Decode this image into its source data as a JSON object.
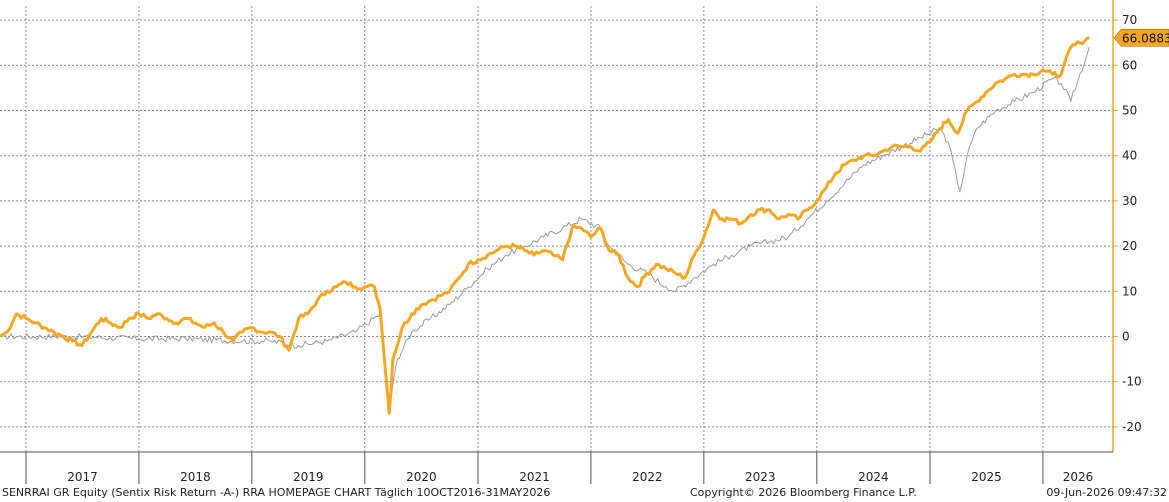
{
  "chart_data": {
    "type": "line",
    "title": "",
    "xlabel": "",
    "ylabel": "",
    "ylim": [
      -24,
      72
    ],
    "yticks": [
      -20,
      -10,
      0,
      10,
      20,
      30,
      40,
      50,
      60,
      70
    ],
    "ytick_labels": [
      "-20",
      "-10",
      "0",
      "10",
      "20",
      "30",
      "40",
      "50",
      "60",
      "70"
    ],
    "year_labels": [
      "2017",
      "2018",
      "2019",
      "2020",
      "2021",
      "2022",
      "2023",
      "2024",
      "2025",
      "2026"
    ],
    "grid": true,
    "y_axis_side": "right",
    "last_value_label": "66.0883",
    "colors": {
      "primary": "#f5a623",
      "secondary": "#9a9a9a",
      "axis": "#f5a623",
      "grid": "#8a8a8a"
    },
    "series": [
      {
        "role": "primary",
        "x": [
          "2016-10-10",
          "2016-11-01",
          "2016-12-01",
          "2017-01-01",
          "2017-02-01",
          "2017-03-01",
          "2017-04-01",
          "2017-05-01",
          "2017-06-01",
          "2017-07-01",
          "2017-08-01",
          "2017-09-01",
          "2017-10-01",
          "2017-11-01",
          "2017-12-01",
          "2018-01-01",
          "2018-02-01",
          "2018-03-01",
          "2018-04-01",
          "2018-05-01",
          "2018-06-01",
          "2018-07-01",
          "2018-08-01",
          "2018-09-01",
          "2018-10-01",
          "2018-11-01",
          "2018-12-01",
          "2019-01-01",
          "2019-02-01",
          "2019-03-01",
          "2019-04-01",
          "2019-05-01",
          "2019-06-01",
          "2019-07-01",
          "2019-08-01",
          "2019-09-01",
          "2019-10-01",
          "2019-11-01",
          "2019-12-01",
          "2020-01-01",
          "2020-02-01",
          "2020-02-20",
          "2020-03-20",
          "2020-04-01",
          "2020-05-01",
          "2020-06-01",
          "2020-07-01",
          "2020-08-01",
          "2020-09-01",
          "2020-10-01",
          "2020-11-01",
          "2020-12-01",
          "2021-01-01",
          "2021-02-01",
          "2021-03-01",
          "2021-04-01",
          "2021-05-01",
          "2021-06-01",
          "2021-07-01",
          "2021-08-01",
          "2021-09-01",
          "2021-10-01",
          "2021-11-01",
          "2021-12-01",
          "2022-01-01",
          "2022-02-01",
          "2022-03-01",
          "2022-04-01",
          "2022-05-01",
          "2022-06-01",
          "2022-07-01",
          "2022-08-01",
          "2022-09-01",
          "2022-10-01",
          "2022-11-01",
          "2022-12-01",
          "2023-01-01",
          "2023-02-01",
          "2023-03-01",
          "2023-04-01",
          "2023-05-01",
          "2023-06-01",
          "2023-07-01",
          "2023-08-01",
          "2023-09-01",
          "2023-10-01",
          "2023-11-01",
          "2023-12-01",
          "2024-01-01",
          "2024-02-01",
          "2024-03-01",
          "2024-04-01",
          "2024-05-01",
          "2024-06-01",
          "2024-07-01",
          "2024-08-01",
          "2024-09-01",
          "2024-10-01",
          "2024-11-01",
          "2024-12-01",
          "2025-01-01",
          "2025-02-01",
          "2025-03-01",
          "2025-04-01",
          "2025-05-01",
          "2025-06-01",
          "2025-07-01",
          "2025-08-01",
          "2025-09-01",
          "2025-10-01",
          "2025-11-01",
          "2025-12-01",
          "2026-01-01",
          "2026-02-01",
          "2026-03-01",
          "2026-04-01",
          "2026-05-01",
          "2026-05-31"
        ],
        "values": [
          0,
          1,
          5,
          4,
          3,
          2,
          1,
          0,
          -1,
          -2,
          1,
          4,
          3,
          2,
          4,
          5,
          4,
          5,
          4,
          3,
          4,
          3,
          2,
          3,
          1,
          -1,
          1,
          2,
          1,
          1,
          0,
          -3,
          4,
          5,
          8,
          10,
          11,
          12,
          11,
          11,
          11,
          6,
          -17,
          -5,
          2,
          5,
          7,
          8,
          9,
          10,
          13,
          16,
          17,
          18,
          19,
          20,
          20,
          19,
          18,
          19,
          18,
          17,
          24,
          24,
          22,
          24,
          19,
          18,
          13,
          11,
          14,
          16,
          15,
          14,
          13,
          18,
          22,
          28,
          26,
          26,
          25,
          27,
          28,
          28,
          26,
          27,
          26,
          28,
          30,
          33,
          36,
          38,
          39,
          40,
          40,
          41,
          42,
          42,
          42,
          41,
          43,
          46,
          48,
          45,
          50,
          52,
          54,
          56,
          57,
          58,
          58,
          58,
          59,
          58,
          58,
          64,
          65,
          66.0883
        ]
      },
      {
        "role": "secondary",
        "x": [
          "2016-10-10",
          "2017-06-01",
          "2018-01-01",
          "2018-06-01",
          "2018-12-01",
          "2019-03-01",
          "2019-06-01",
          "2019-09-01",
          "2019-12-01",
          "2020-02-20",
          "2020-03-20",
          "2020-04-15",
          "2020-06-01",
          "2020-08-01",
          "2020-10-01",
          "2020-12-01",
          "2021-02-01",
          "2021-04-01",
          "2021-06-01",
          "2021-08-01",
          "2021-10-01",
          "2021-12-01",
          "2022-02-01",
          "2022-03-01",
          "2022-05-01",
          "2022-07-01",
          "2022-09-01",
          "2022-10-01",
          "2022-12-01",
          "2023-02-01",
          "2023-04-01",
          "2023-06-01",
          "2023-08-01",
          "2023-10-01",
          "2023-12-01",
          "2024-02-01",
          "2024-04-01",
          "2024-06-01",
          "2024-08-01",
          "2024-10-01",
          "2024-12-01",
          "2025-02-01",
          "2025-03-01",
          "2025-04-08",
          "2025-05-01",
          "2025-06-01",
          "2025-08-01",
          "2025-10-01",
          "2025-12-01",
          "2026-02-01",
          "2026-03-01",
          "2026-04-01",
          "2026-05-31"
        ],
        "values": [
          0,
          0,
          -0.5,
          -0.5,
          -1,
          -1,
          -2,
          -1,
          1,
          5,
          -16,
          -5,
          1,
          4,
          7,
          11,
          15,
          18,
          20,
          22,
          24,
          26,
          24,
          20,
          16,
          14,
          11,
          10,
          13,
          16,
          18,
          20,
          21,
          22,
          26,
          30,
          34,
          38,
          40,
          42,
          44,
          46,
          43,
          32,
          40,
          46,
          50,
          52,
          54,
          57,
          56,
          52,
          64
        ]
      }
    ]
  },
  "footer": {
    "left": "SENRRAI GR Equity (Sentix Risk Return -A-) RRA HOMEPAGE CHART Täglich 10OCT2016-31MAY2026",
    "center": "Copyright© 2026 Bloomberg Finance L.P.",
    "right": "09-Jun-2026 09:47:32"
  }
}
